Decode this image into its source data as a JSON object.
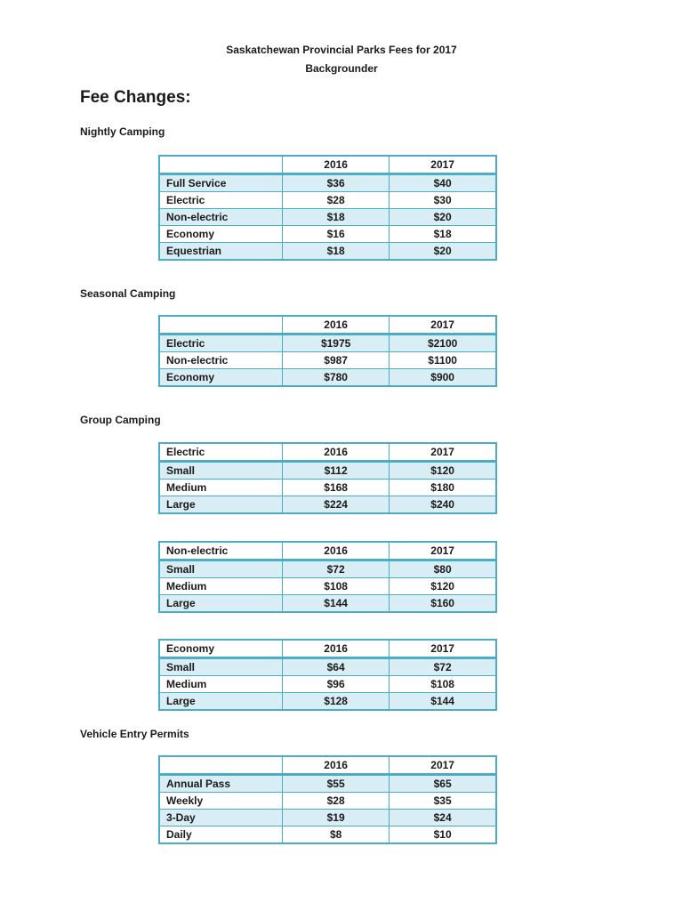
{
  "document": {
    "title_line1": "Saskatchewan Provincial Parks Fees for 2017",
    "title_line2": "Backgrounder",
    "main_heading": "Fee Changes:"
  },
  "colors": {
    "table_border": "#4bacc6",
    "row_shading": "#d9edf4",
    "text": "#1a1a1a",
    "page_background": "#ffffff"
  },
  "sections": [
    {
      "label": "Nightly Camping",
      "table": {
        "headers": [
          "",
          "2016",
          "2017"
        ],
        "rows": [
          [
            "Full Service",
            "$36",
            "$40"
          ],
          [
            "Electric",
            "$28",
            "$30"
          ],
          [
            "Non-electric",
            "$18",
            "$20"
          ],
          [
            "Economy",
            "$16",
            "$18"
          ],
          [
            "Equestrian",
            "$18",
            "$20"
          ]
        ]
      }
    },
    {
      "label": "Seasonal Camping",
      "table": {
        "headers": [
          "",
          "2016",
          "2017"
        ],
        "rows": [
          [
            "Electric",
            "$1975",
            "$2100"
          ],
          [
            "Non-electric",
            "$987",
            "$1100"
          ],
          [
            "Economy",
            "$780",
            "$900"
          ]
        ]
      }
    },
    {
      "label": "Group Camping",
      "tables": [
        {
          "headers": [
            "Electric",
            "2016",
            "2017"
          ],
          "rows": [
            [
              "Small",
              "$112",
              "$120"
            ],
            [
              "Medium",
              "$168",
              "$180"
            ],
            [
              "Large",
              "$224",
              "$240"
            ]
          ]
        },
        {
          "headers": [
            "Non-electric",
            "2016",
            "2017"
          ],
          "rows": [
            [
              "Small",
              "$72",
              "$80"
            ],
            [
              "Medium",
              "$108",
              "$120"
            ],
            [
              "Large",
              "$144",
              "$160"
            ]
          ]
        },
        {
          "headers": [
            "Economy",
            "2016",
            "2017"
          ],
          "rows": [
            [
              "Small",
              "$64",
              "$72"
            ],
            [
              "Medium",
              "$96",
              "$108"
            ],
            [
              "Large",
              "$128",
              "$144"
            ]
          ]
        }
      ]
    },
    {
      "label": "Vehicle Entry Permits",
      "table": {
        "headers": [
          "",
          "2016",
          "2017"
        ],
        "rows": [
          [
            "Annual Pass",
            "$55",
            "$65"
          ],
          [
            "Weekly",
            "$28",
            "$35"
          ],
          [
            "3-Day",
            "$19",
            "$24"
          ],
          [
            "Daily",
            "$8",
            "$10"
          ]
        ]
      }
    }
  ]
}
